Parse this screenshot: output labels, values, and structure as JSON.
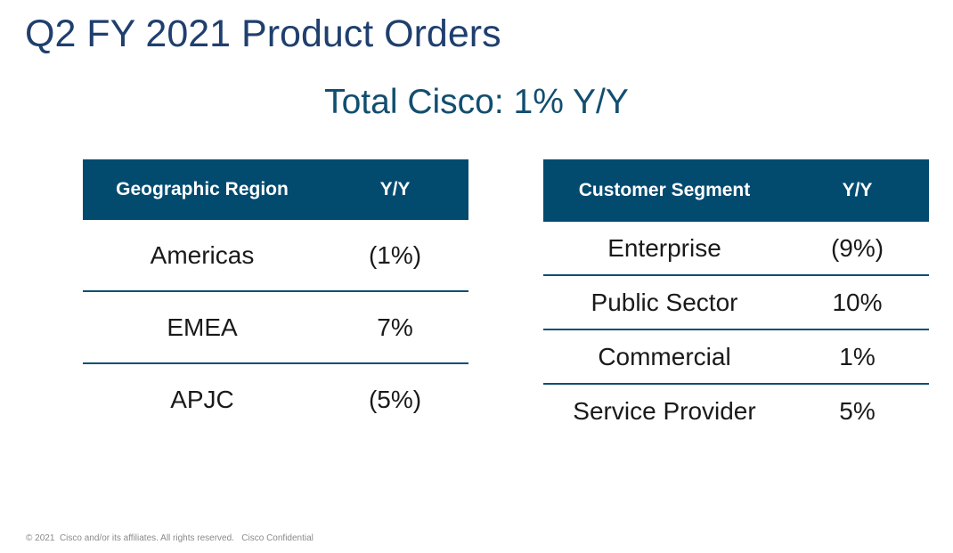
{
  "title": "Q2 FY 2021 Product Orders",
  "subtitle": "Total Cisco: 1% Y/Y",
  "geo_table": {
    "headers": [
      "Geographic Region",
      "Y/Y"
    ],
    "rows": [
      {
        "label": "Americas",
        "value": "(1%)"
      },
      {
        "label": "EMEA",
        "value": "7%"
      },
      {
        "label": "APJC",
        "value": "(5%)"
      }
    ]
  },
  "segment_table": {
    "headers": [
      "Customer Segment",
      "Y/Y"
    ],
    "rows": [
      {
        "label": "Enterprise",
        "value": "(9%)"
      },
      {
        "label": "Public Sector",
        "value": "10%"
      },
      {
        "label": "Commercial",
        "value": "1%"
      },
      {
        "label": "Service Provider",
        "value": "5%"
      }
    ]
  },
  "footer": "© 2021  Cisco and/or its affiliates. All rights reserved.   Cisco Confidential",
  "colors": {
    "title": "#1f3f6e",
    "subtitle": "#124e70",
    "header_bg": "#034a6f",
    "rule": "#0f4f73"
  }
}
